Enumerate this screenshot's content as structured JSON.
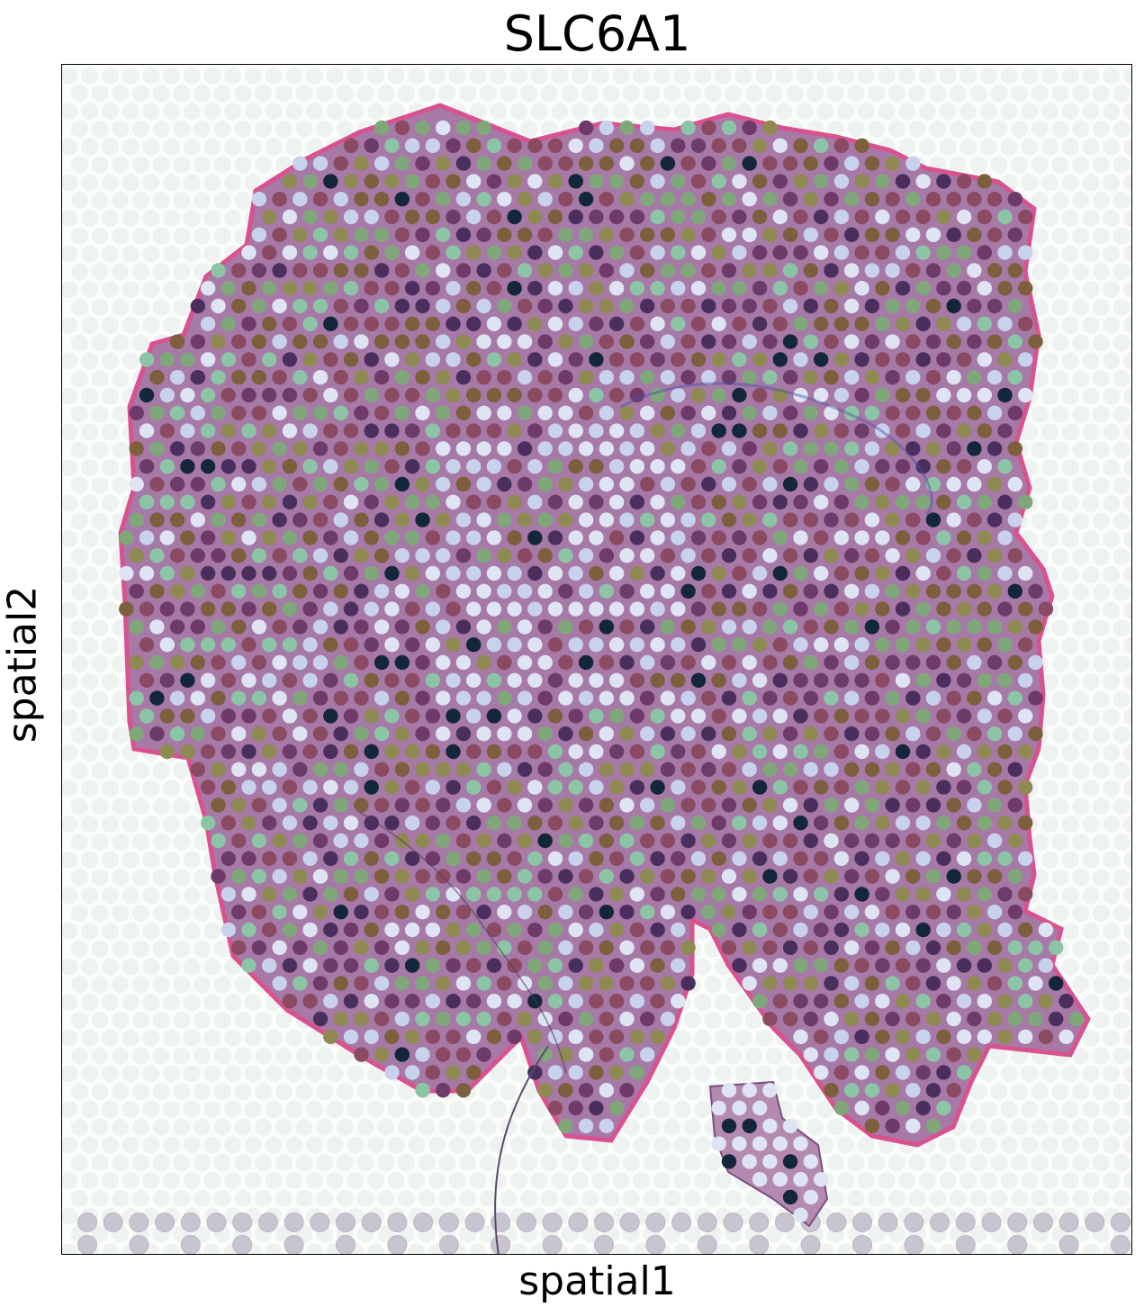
{
  "chart_data": {
    "type": "scatter",
    "title": "SLC6A1",
    "xlabel": "spatial1",
    "ylabel": "spatial2",
    "grid": false,
    "legend": "none",
    "x_ticks": [],
    "y_ticks": [],
    "background": "H&E tissue section (purple/pink staining)",
    "point_palette": [
      "#14263a",
      "#4a2f5e",
      "#6e3a6a",
      "#8a4a62",
      "#7d5f3e",
      "#8f8a52",
      "#7fa77a",
      "#8cc5a5",
      "#c9d2ec",
      "#dfe4f4"
    ],
    "description_of_marks": "Visium spots colored by SLC6A1 expression on tissue section"
  },
  "colors": {
    "tissue_fill": "#a679a6",
    "tissue_edge": "#d9528f",
    "background_spot": "#c9c5d0",
    "frame": "#000000"
  }
}
